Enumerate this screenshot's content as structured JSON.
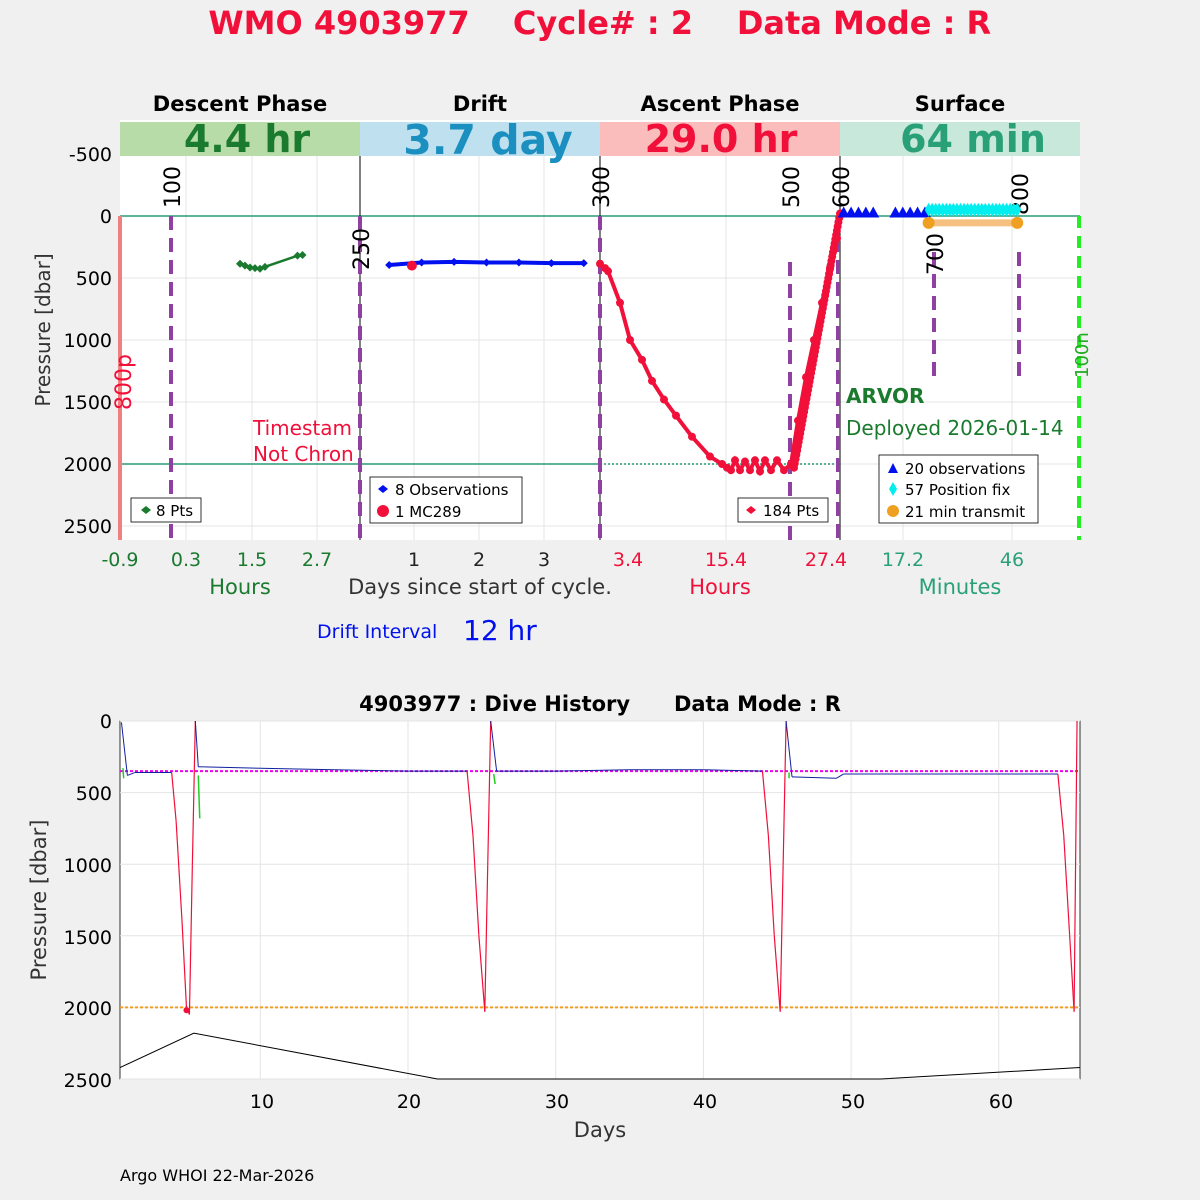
{
  "title": {
    "wmo": "WMO 4903977",
    "cycle": "Cycle# : 2",
    "mode": "Data Mode : R"
  },
  "colors": {
    "title": "#f0103a",
    "descent": "#1a7a2e",
    "drift": "#1a8fc0",
    "ascent": "#f0103a",
    "surface": "#2aa078"
  },
  "panels": [
    {
      "name": "Descent Phase",
      "duration": "4.4 hr",
      "band": "#b8dca8",
      "color": "#1a7a2e"
    },
    {
      "name": "Drift",
      "duration": "3.7 day",
      "band": "#bfe0ee",
      "color": "#1a8fc0"
    },
    {
      "name": "Ascent Phase",
      "duration": "29.0 hr",
      "band": "#fbbcbc",
      "color": "#f0103a"
    },
    {
      "name": "Surface",
      "duration": "64 min",
      "band": "#c8e8dc",
      "color": "#2aa078"
    }
  ],
  "axes": {
    "ylabel": "Pressure [dbar]",
    "yticks": [
      "-500",
      "0",
      "500",
      "1000",
      "1500",
      "2000",
      "2500"
    ],
    "xticks": {
      "descent": [
        "-0.9",
        "0.3",
        "1.5",
        "2.7"
      ],
      "drift": [
        "1",
        "2",
        "3"
      ],
      "ascent": [
        "3.4",
        "15.4",
        "27.4"
      ],
      "surface": [
        "17.2",
        "46"
      ]
    },
    "xlabels": {
      "descent": "Hours",
      "drift": "Days since start of cycle.",
      "ascent": "Hours",
      "surface": "Minutes"
    }
  },
  "markers": [
    "100",
    "250",
    "300",
    "500",
    "600",
    "700",
    "800"
  ],
  "side_labels": {
    "left": "800p",
    "right": "100n"
  },
  "notes": {
    "timestamp_1": "Timestam",
    "timestamp_2": "Not Chron",
    "float_type": "ARVOR",
    "deployed": "Deployed 2026-01-14"
  },
  "legends": {
    "descent": "8 Pts",
    "drift": [
      "8 Observations",
      "1 MC289"
    ],
    "ascent": "184 Pts",
    "surface": [
      "20 observations",
      "57 Position fix",
      "21 min transmit"
    ]
  },
  "drift_interval": {
    "label": "Drift Interval",
    "value": "12 hr"
  },
  "chart_data": [
    {
      "type": "scatter",
      "title": "Descent Phase",
      "xlabel": "Hours",
      "ylabel": "Pressure [dbar]",
      "ylim": [
        -750,
        2600
      ],
      "y_reversed": true,
      "xlim": [
        -0.9,
        3.9
      ],
      "series": [
        {
          "name": "8 Pts",
          "x": [
            1.5,
            1.6,
            1.7,
            1.8,
            1.9,
            2.0,
            2.65,
            2.75
          ],
          "y": [
            385,
            400,
            415,
            420,
            425,
            410,
            320,
            315
          ]
        }
      ]
    },
    {
      "type": "line",
      "title": "Drift",
      "xlabel": "Days since start of cycle.",
      "ylabel": "Pressure [dbar]",
      "ylim": [
        -750,
        2600
      ],
      "y_reversed": true,
      "xlim": [
        0.2,
        3.9
      ],
      "series": [
        {
          "name": "8 Observations",
          "x": [
            0.65,
            1.15,
            1.65,
            2.15,
            2.65,
            3.15,
            3.65
          ],
          "y": [
            395,
            375,
            370,
            375,
            375,
            380,
            380
          ]
        },
        {
          "name": "1 MC289",
          "x": [
            1.0
          ],
          "y": [
            400
          ]
        }
      ]
    },
    {
      "type": "line",
      "title": "Ascent Phase",
      "xlabel": "Hours",
      "ylabel": "Pressure [dbar]",
      "ylim": [
        -750,
        2600
      ],
      "y_reversed": true,
      "xlim": [
        3.4,
        27.4
      ],
      "series": [
        {
          "name": "184 Pts",
          "x": [
            3.4,
            3.9,
            4.2,
            5.4,
            6.4,
            7.6,
            8.6,
            9.8,
            11.0,
            12.6,
            14.4,
            15.6,
            16.1,
            16.5,
            16.9,
            17.4,
            17.9,
            18.4,
            18.9,
            19.4,
            19.9,
            20.5,
            21.1,
            21.8,
            22.5,
            23.2,
            24.0,
            24.8,
            25.6,
            26.4,
            27.1,
            27.5
          ],
          "y": [
            385,
            420,
            445,
            700,
            1000,
            1160,
            1330,
            1480,
            1610,
            1780,
            1940,
            2000,
            2030,
            2050,
            1970,
            2050,
            1980,
            2050,
            1970,
            2060,
            1970,
            2050,
            1970,
            2050,
            2000,
            1650,
            1300,
            1000,
            700,
            420,
            180,
            -20
          ]
        }
      ]
    },
    {
      "type": "scatter",
      "title": "Surface",
      "xlabel": "Minutes",
      "ylabel": "Pressure [dbar]",
      "ylim": [
        -750,
        2600
      ],
      "y_reversed": true,
      "xlim": [
        -1,
        64
      ],
      "series": [
        {
          "name": "20 observations",
          "x": [
            0,
            2,
            4,
            6,
            8,
            14,
            16,
            18,
            20,
            22
          ],
          "y": [
            -20,
            -20,
            -20,
            -20,
            -20,
            -20,
            -20,
            -20,
            -20,
            -20
          ]
        },
        {
          "name": "57 Position fix",
          "x": [
            23,
            26,
            29,
            32,
            35,
            38,
            41,
            44,
            47
          ],
          "y": [
            -50,
            -50,
            -50,
            -50,
            -50,
            -50,
            -50,
            -50,
            -50
          ]
        },
        {
          "name": "21 min transmit",
          "x": [
            23,
            47
          ],
          "y": [
            55,
            55
          ]
        }
      ]
    },
    {
      "type": "line",
      "title": "4903977 : Dive History      Data Mode : R",
      "xlabel": "Days",
      "ylabel": "Pressure [dbar]",
      "xlim": [
        0.5,
        65.5
      ],
      "ylim": [
        0,
        2500
      ],
      "y_reversed": true,
      "xticks": [
        10,
        20,
        30,
        40,
        50,
        60
      ],
      "yticks": [
        0,
        500,
        1000,
        1500,
        2000,
        2500
      ],
      "series": [
        {
          "name": "profile",
          "x": [
            0.6,
            1.0,
            1.5,
            4.0,
            4.3,
            4.7,
            5.0,
            5.2,
            5.4,
            5.6,
            5.8,
            6.2,
            10.0,
            15.0,
            20.0,
            24.0,
            24.4,
            24.8,
            25.2,
            25.4,
            25.6,
            26.0,
            30.0,
            35.0,
            40.0,
            44.0,
            44.4,
            44.8,
            45.2,
            45.4,
            45.6,
            46.0,
            49.0,
            49.5,
            64.0,
            64.4,
            64.8,
            65.1,
            65.3
          ],
          "y": [
            10,
            380,
            360,
            360,
            700,
            1400,
            2000,
            2050,
            1000,
            0,
            320,
            320,
            330,
            340,
            350,
            350,
            800,
            1500,
            2030,
            1000,
            0,
            350,
            350,
            340,
            340,
            350,
            800,
            1500,
            2030,
            1000,
            0,
            390,
            400,
            370,
            370,
            800,
            1500,
            2030,
            0
          ]
        },
        {
          "name": "park pressure",
          "x": [
            0.5,
            65.5
          ],
          "y": [
            350,
            350
          ]
        },
        {
          "name": "profile pressure",
          "x": [
            0.5,
            65.5
          ],
          "y": [
            2000,
            2000
          ]
        },
        {
          "name": "bottom",
          "x": [
            0.5,
            5.5,
            22.0,
            52.0,
            65.5
          ],
          "y": [
            2420,
            2180,
            2500,
            2500,
            2420
          ]
        }
      ]
    }
  ],
  "dive_history": {
    "title": "4903977 : Dive History      Data Mode : R",
    "xlabel": "Days",
    "ylabel": "Pressure [dbar]",
    "xticks": [
      "10",
      "20",
      "30",
      "40",
      "50",
      "60"
    ],
    "yticks": [
      "0",
      "500",
      "1000",
      "1500",
      "2000",
      "2500"
    ]
  },
  "footer": "Argo WHOI 22-Mar-2026"
}
